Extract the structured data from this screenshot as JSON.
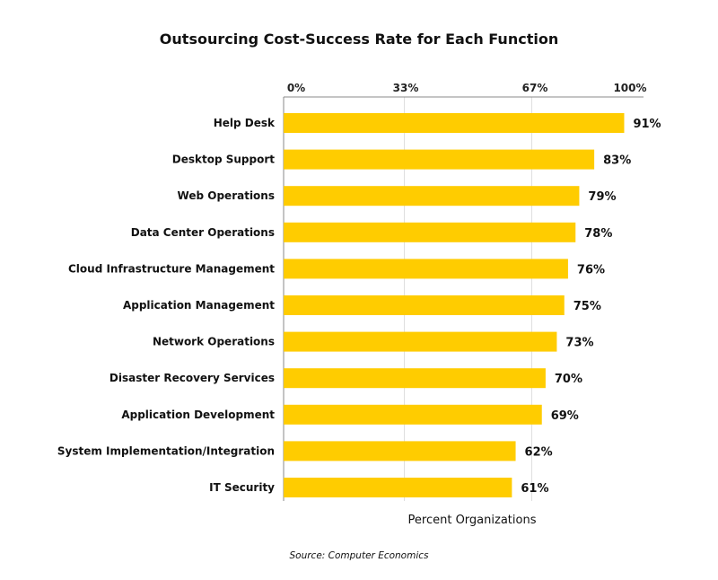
{
  "chart_data": {
    "type": "bar",
    "orientation": "horizontal",
    "title": "Outsourcing Cost-Success Rate for Each Function",
    "xlabel": "Percent Organizations",
    "ylabel": "",
    "xlim": [
      0,
      100
    ],
    "xticks": [
      0,
      33,
      67,
      100
    ],
    "xtick_labels": [
      "0%",
      "33%",
      "67%",
      "100%"
    ],
    "grid": true,
    "categories": [
      "Help Desk",
      "Desktop Support",
      "Web Operations",
      "Data Center Operations",
      "Cloud Infrastructure Management",
      "Application Management",
      "Network Operations",
      "Disaster Recovery Services",
      "Application Development",
      "System Implementation/Integration",
      "IT Security"
    ],
    "values": [
      91,
      83,
      79,
      78,
      76,
      75,
      73,
      70,
      69,
      62,
      61
    ],
    "value_labels": [
      "91%",
      "83%",
      "79%",
      "78%",
      "76%",
      "75%",
      "73%",
      "70%",
      "69%",
      "62%",
      "61%"
    ],
    "bar_color": "#FFCC00",
    "source": "Source: Computer Economics"
  }
}
